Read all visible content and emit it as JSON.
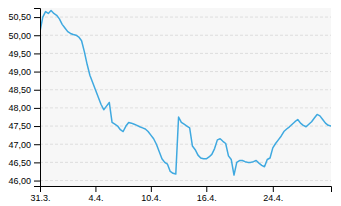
{
  "chart_data": {
    "type": "line",
    "categories": [
      "31.3.",
      null,
      null,
      null,
      null,
      null,
      null,
      null,
      null,
      null,
      null,
      null,
      null,
      null,
      null,
      null,
      null,
      null,
      null,
      null,
      "4.4.",
      null,
      null,
      null,
      null,
      null,
      null,
      null,
      null,
      null,
      null,
      null,
      null,
      null,
      null,
      null,
      null,
      null,
      null,
      null,
      "10.4.",
      null,
      null,
      null,
      null,
      null,
      null,
      null,
      null,
      null,
      null,
      null,
      null,
      null,
      null,
      null,
      null,
      null,
      null,
      null,
      "16.4.",
      null,
      null,
      null,
      null,
      null,
      null,
      null,
      null,
      null,
      null,
      null,
      null,
      null,
      null,
      null,
      null,
      null,
      null,
      null,
      null,
      null,
      null,
      null,
      "24.4.",
      null,
      null,
      null,
      null,
      null,
      null,
      null,
      null,
      null,
      null,
      null,
      null,
      null,
      null,
      null,
      null,
      null,
      null,
      null,
      null,
      null
    ],
    "values": [
      50.1,
      50.5,
      50.65,
      50.6,
      50.68,
      50.6,
      50.55,
      50.45,
      50.3,
      50.2,
      50.1,
      50.05,
      50.02,
      50.0,
      49.95,
      49.85,
      49.55,
      49.2,
      48.9,
      48.7,
      48.5,
      48.3,
      48.1,
      47.95,
      48.05,
      48.15,
      47.6,
      47.55,
      47.5,
      47.4,
      47.35,
      47.5,
      47.6,
      47.58,
      47.55,
      47.52,
      47.48,
      47.45,
      47.42,
      47.35,
      47.25,
      47.15,
      47.0,
      46.8,
      46.6,
      46.5,
      46.45,
      46.25,
      46.2,
      46.18,
      47.75,
      47.6,
      47.55,
      47.5,
      47.45,
      46.95,
      46.85,
      46.7,
      46.62,
      46.6,
      46.6,
      46.65,
      46.72,
      46.88,
      47.12,
      47.15,
      47.08,
      47.02,
      46.68,
      46.58,
      46.15,
      46.5,
      46.55,
      46.55,
      46.52,
      46.5,
      46.5,
      46.52,
      46.55,
      46.48,
      46.42,
      46.38,
      46.58,
      46.62,
      46.9,
      47.02,
      47.12,
      47.22,
      47.35,
      47.42,
      47.48,
      47.55,
      47.62,
      47.68,
      47.58,
      47.52,
      47.48,
      47.55,
      47.62,
      47.72,
      47.82,
      47.78,
      47.68,
      47.58,
      47.52,
      47.5
    ],
    "color": "#3fa9e0",
    "ylim": [
      45.85,
      50.75
    ],
    "yticks": [
      {
        "value": 46.0,
        "label": "46,00"
      },
      {
        "value": 46.5,
        "label": "46,50"
      },
      {
        "value": 47.0,
        "label": "47,00"
      },
      {
        "value": 47.5,
        "label": "47,50"
      },
      {
        "value": 48.0,
        "label": "48,00"
      },
      {
        "value": 48.5,
        "label": "48,50"
      },
      {
        "value": 49.0,
        "label": "49,00"
      },
      {
        "value": 49.5,
        "label": "49,50"
      },
      {
        "value": 50.0,
        "label": "50,00"
      },
      {
        "value": 50.5,
        "label": "50,50"
      }
    ],
    "grid": true
  }
}
